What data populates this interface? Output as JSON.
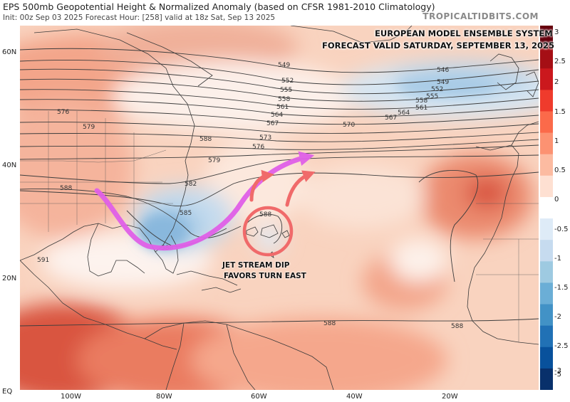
{
  "header": {
    "title": "EPS 500mb Geopotential Height & Normalized Anomaly (based on CFSR 1981-2010 Climatology)",
    "subtitle": "Init: 00z Sep 03 2025   Forecast Hour: [258]   valid at 18z Sat, Sep 13 2025",
    "brand": "TROPICALTIDBITS.COM"
  },
  "banner": {
    "line1": "EUROPEAN MODEL ENSEMBLE SYSTEM",
    "line2": "FORECAST VALID SATURDAY, SEPTEMBER 13, 2025"
  },
  "annotation": {
    "line1": "JET STREAM DIP",
    "line2": "FAVORS TURN EAST"
  },
  "axes": {
    "lat_labels": [
      "60N",
      "40N",
      "20N",
      "EQ"
    ],
    "lon_labels": [
      "100W",
      "80W",
      "60W",
      "40W",
      "20W"
    ]
  },
  "colorbar": {
    "labels": [
      "3",
      "2.5",
      "2",
      "1.5",
      "1",
      "0.5",
      "0",
      "-0.5",
      "-1",
      "-1.5",
      "-2",
      "-2.5",
      "-3",
      "-5"
    ],
    "colors": [
      "#67000d",
      "#a50f15",
      "#cb181d",
      "#ef3b2c",
      "#fb6a4a",
      "#fc9272",
      "#fcbba1",
      "#fee0d2",
      "#ffffff",
      "#deebf7",
      "#c6dbef",
      "#9ecae1",
      "#6baed6",
      "#4292c6",
      "#2171b5",
      "#08519c",
      "#08306b"
    ]
  },
  "contour_labels": [
    "549",
    "552",
    "555",
    "558",
    "561",
    "564",
    "567",
    "570",
    "573",
    "576",
    "579",
    "582",
    "585",
    "588",
    "546",
    "549",
    "552",
    "555",
    "558",
    "561",
    "564",
    "567",
    "576",
    "579",
    "588",
    "588",
    "588",
    "588",
    "591",
    "588"
  ],
  "colors": {
    "jet_arrow": "#e060e8",
    "turn_arrows": "#f06a6a",
    "circle": "#f06a6a"
  }
}
